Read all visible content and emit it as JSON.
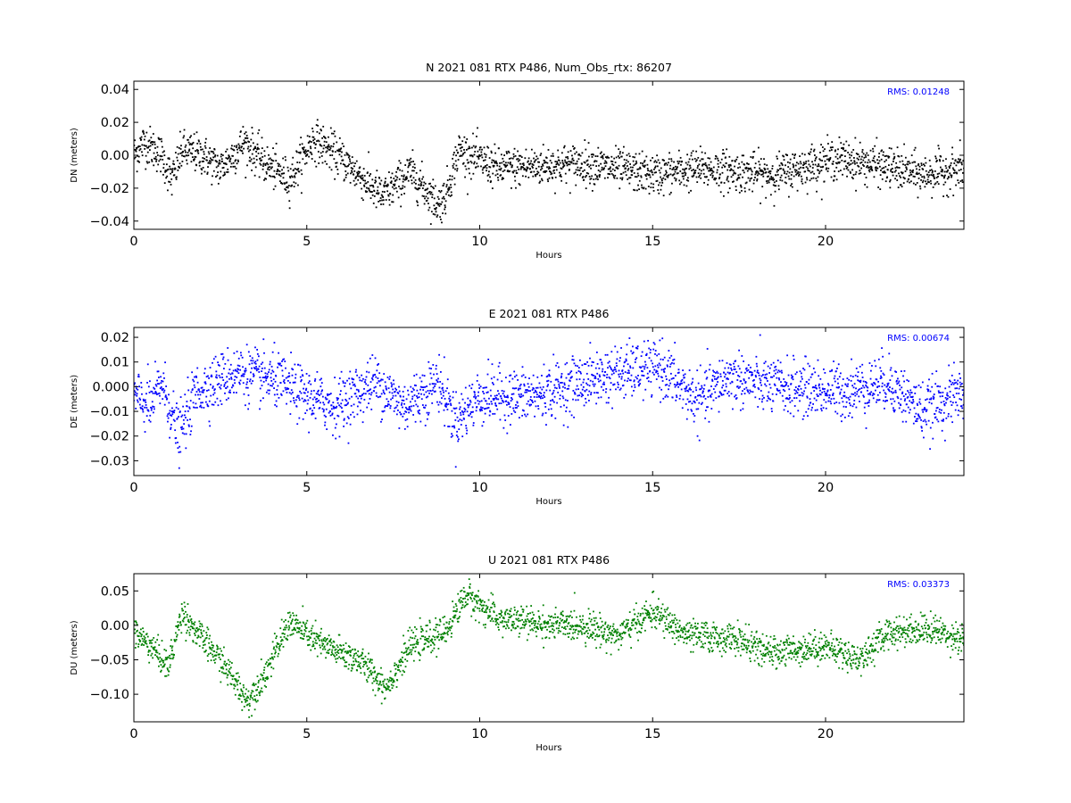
{
  "chart_data": [
    {
      "type": "scatter",
      "title": "N 2021 081 RTX  P486, Num_Obs_rtx: 86207",
      "xlabel": "Hours",
      "ylabel": "DN (meters)",
      "xlim": [
        0,
        24
      ],
      "ylim": [
        -0.045,
        0.045
      ],
      "xticks": [
        0,
        5,
        10,
        15,
        20
      ],
      "yticks": [
        -0.04,
        -0.02,
        0.0,
        0.02,
        0.04
      ],
      "ytick_labels": [
        "−0.04",
        "−0.02",
        "0.00",
        "0.02",
        "0.04"
      ],
      "color": "#000000",
      "rms_label": "RMS:  0.01248",
      "noise": 0.006,
      "trend": [
        {
          "x": 0.0,
          "y": 0.0
        },
        {
          "x": 0.3,
          "y": 0.008
        },
        {
          "x": 0.8,
          "y": 0.0
        },
        {
          "x": 1.1,
          "y": -0.015
        },
        {
          "x": 1.4,
          "y": 0.003
        },
        {
          "x": 2.0,
          "y": 0.0
        },
        {
          "x": 2.5,
          "y": -0.008
        },
        {
          "x": 3.2,
          "y": 0.008
        },
        {
          "x": 3.8,
          "y": -0.005
        },
        {
          "x": 4.5,
          "y": -0.015
        },
        {
          "x": 5.2,
          "y": 0.01
        },
        {
          "x": 6.0,
          "y": -0.002
        },
        {
          "x": 6.8,
          "y": -0.018
        },
        {
          "x": 7.2,
          "y": -0.025
        },
        {
          "x": 8.0,
          "y": -0.01
        },
        {
          "x": 8.8,
          "y": -0.03
        },
        {
          "x": 9.0,
          "y": -0.025
        },
        {
          "x": 9.4,
          "y": 0.003
        },
        {
          "x": 10.5,
          "y": -0.008
        },
        {
          "x": 13.0,
          "y": -0.005
        },
        {
          "x": 15.0,
          "y": -0.012
        },
        {
          "x": 16.5,
          "y": -0.008
        },
        {
          "x": 18.5,
          "y": -0.012
        },
        {
          "x": 20.3,
          "y": -0.002
        },
        {
          "x": 21.5,
          "y": -0.006
        },
        {
          "x": 22.8,
          "y": -0.012
        },
        {
          "x": 24.0,
          "y": -0.008
        }
      ]
    },
    {
      "type": "scatter",
      "title": "E 2021 081 RTX  P486",
      "xlabel": "Hours",
      "ylabel": "DE (meters)",
      "xlim": [
        0,
        24
      ],
      "ylim": [
        -0.036,
        0.024
      ],
      "xticks": [
        0,
        5,
        10,
        15,
        20
      ],
      "yticks": [
        -0.03,
        -0.02,
        -0.01,
        0.0,
        0.01,
        0.02
      ],
      "ytick_labels": [
        "−0.03",
        "−0.02",
        "−0.01",
        "0.000",
        "0.01",
        "0.02"
      ],
      "color": "#0000ff",
      "rms_label": "RMS:  0.00674",
      "noise": 0.0055,
      "trend": [
        {
          "x": 0.0,
          "y": -0.004
        },
        {
          "x": 0.5,
          "y": -0.008
        },
        {
          "x": 0.8,
          "y": 0.002
        },
        {
          "x": 1.3,
          "y": -0.02
        },
        {
          "x": 1.8,
          "y": -0.002
        },
        {
          "x": 3.0,
          "y": 0.006
        },
        {
          "x": 4.2,
          "y": 0.002
        },
        {
          "x": 5.0,
          "y": -0.004
        },
        {
          "x": 5.8,
          "y": -0.008
        },
        {
          "x": 7.0,
          "y": 0.002
        },
        {
          "x": 7.8,
          "y": -0.008
        },
        {
          "x": 8.8,
          "y": 0.002
        },
        {
          "x": 9.3,
          "y": -0.014
        },
        {
          "x": 10.0,
          "y": -0.004
        },
        {
          "x": 11.5,
          "y": -0.004
        },
        {
          "x": 13.5,
          "y": 0.004
        },
        {
          "x": 15.2,
          "y": 0.008
        },
        {
          "x": 16.3,
          "y": -0.006
        },
        {
          "x": 17.2,
          "y": 0.004
        },
        {
          "x": 18.5,
          "y": 0.0
        },
        {
          "x": 20.5,
          "y": -0.002
        },
        {
          "x": 21.8,
          "y": 0.002
        },
        {
          "x": 22.8,
          "y": -0.01
        },
        {
          "x": 24.0,
          "y": -0.002
        }
      ]
    },
    {
      "type": "scatter",
      "title": "U 2021 081 RTX  P486",
      "xlabel": "Hours",
      "ylabel": "DU (meters)",
      "xlim": [
        0,
        24
      ],
      "ylim": [
        -0.14,
        0.075
      ],
      "xticks": [
        0,
        5,
        10,
        15,
        20
      ],
      "yticks": [
        -0.1,
        -0.05,
        0.0,
        0.05
      ],
      "ytick_labels": [
        "−0.10",
        "−0.05",
        "0.00",
        "0.05"
      ],
      "color": "#008000",
      "rms_label": "RMS:  0.03373",
      "noise": 0.011,
      "trend": [
        {
          "x": 0.0,
          "y": -0.01
        },
        {
          "x": 0.5,
          "y": -0.03
        },
        {
          "x": 1.0,
          "y": -0.06
        },
        {
          "x": 1.4,
          "y": 0.02
        },
        {
          "x": 1.8,
          "y": -0.01
        },
        {
          "x": 2.5,
          "y": -0.05
        },
        {
          "x": 3.3,
          "y": -0.11
        },
        {
          "x": 3.8,
          "y": -0.07
        },
        {
          "x": 4.5,
          "y": 0.005
        },
        {
          "x": 5.5,
          "y": -0.03
        },
        {
          "x": 6.5,
          "y": -0.05
        },
        {
          "x": 7.3,
          "y": -0.09
        },
        {
          "x": 8.0,
          "y": -0.03
        },
        {
          "x": 9.0,
          "y": -0.01
        },
        {
          "x": 9.6,
          "y": 0.045
        },
        {
          "x": 10.5,
          "y": 0.01
        },
        {
          "x": 12.0,
          "y": 0.0
        },
        {
          "x": 13.0,
          "y": 0.0
        },
        {
          "x": 14.0,
          "y": -0.015
        },
        {
          "x": 15.0,
          "y": 0.02
        },
        {
          "x": 16.0,
          "y": -0.015
        },
        {
          "x": 17.5,
          "y": -0.02
        },
        {
          "x": 18.3,
          "y": -0.04
        },
        {
          "x": 20.0,
          "y": -0.03
        },
        {
          "x": 21.0,
          "y": -0.05
        },
        {
          "x": 21.8,
          "y": -0.01
        },
        {
          "x": 23.0,
          "y": -0.005
        },
        {
          "x": 24.0,
          "y": -0.02
        }
      ]
    }
  ]
}
